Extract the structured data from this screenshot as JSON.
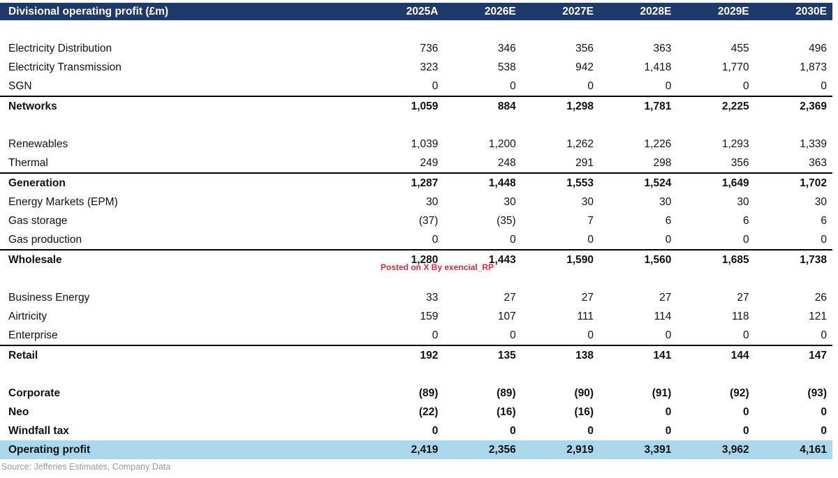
{
  "table": {
    "title": "Divisional operating profit (£m)",
    "columns": [
      "2025A",
      "2026E",
      "2027E",
      "2028E",
      "2029E",
      "2030E"
    ],
    "rows": [
      {
        "type": "spacer",
        "label": "",
        "values": [
          "",
          "",
          "",
          "",
          "",
          ""
        ]
      },
      {
        "type": "data",
        "label": "Electricity Distribution",
        "values": [
          "736",
          "346",
          "356",
          "363",
          "455",
          "496"
        ]
      },
      {
        "type": "data",
        "label": "Electricity Transmission",
        "values": [
          "323",
          "538",
          "942",
          "1,418",
          "1,770",
          "1,873"
        ]
      },
      {
        "type": "data",
        "label": "SGN",
        "values": [
          "0",
          "0",
          "0",
          "0",
          "0",
          "0"
        ]
      },
      {
        "type": "total",
        "label": "Networks",
        "values": [
          "1,059",
          "884",
          "1,298",
          "1,781",
          "2,225",
          "2,369"
        ]
      },
      {
        "type": "spacer",
        "label": "",
        "values": [
          "",
          "",
          "",
          "",
          "",
          ""
        ]
      },
      {
        "type": "data",
        "label": "Renewables",
        "values": [
          "1,039",
          "1,200",
          "1,262",
          "1,226",
          "1,293",
          "1,339"
        ]
      },
      {
        "type": "data",
        "label": "Thermal",
        "values": [
          "249",
          "248",
          "291",
          "298",
          "356",
          "363"
        ]
      },
      {
        "type": "total",
        "label": "Generation",
        "values": [
          "1,287",
          "1,448",
          "1,553",
          "1,524",
          "1,649",
          "1,702"
        ]
      },
      {
        "type": "data",
        "label": "Energy Markets (EPM)",
        "values": [
          "30",
          "30",
          "30",
          "30",
          "30",
          "30"
        ]
      },
      {
        "type": "data",
        "label": "Gas storage",
        "values": [
          "(37)",
          "(35)",
          "7",
          "6",
          "6",
          "6"
        ]
      },
      {
        "type": "data",
        "label": "Gas production",
        "values": [
          "0",
          "0",
          "0",
          "0",
          "0",
          "0"
        ]
      },
      {
        "type": "total",
        "label": "Wholesale",
        "values": [
          "1,280",
          "1,443",
          "1,590",
          "1,560",
          "1,685",
          "1,738"
        ]
      },
      {
        "type": "spacer",
        "label": "",
        "values": [
          "",
          "",
          "",
          "",
          "",
          ""
        ]
      },
      {
        "type": "data",
        "label": "Business Energy",
        "values": [
          "33",
          "27",
          "27",
          "27",
          "27",
          "26"
        ]
      },
      {
        "type": "data",
        "label": "Airtricity",
        "values": [
          "159",
          "107",
          "111",
          "114",
          "118",
          "121"
        ]
      },
      {
        "type": "data",
        "label": "Enterprise",
        "values": [
          "0",
          "0",
          "0",
          "0",
          "0",
          "0"
        ]
      },
      {
        "type": "total",
        "label": "Retail",
        "values": [
          "192",
          "135",
          "138",
          "141",
          "144",
          "147"
        ]
      },
      {
        "type": "spacer",
        "label": "",
        "values": [
          "",
          "",
          "",
          "",
          "",
          ""
        ]
      },
      {
        "type": "bold",
        "label": "Corporate",
        "values": [
          "(89)",
          "(89)",
          "(90)",
          "(91)",
          "(92)",
          "(93)"
        ]
      },
      {
        "type": "bold",
        "label": "Neo",
        "values": [
          "(22)",
          "(16)",
          "(16)",
          "0",
          "0",
          "0"
        ]
      },
      {
        "type": "bold",
        "label": "Windfall tax",
        "values": [
          "0",
          "0",
          "0",
          "0",
          "0",
          "0"
        ]
      },
      {
        "type": "grand",
        "label": "Operating profit",
        "values": [
          "2,419",
          "2,356",
          "2,919",
          "3,391",
          "3,962",
          "4,161"
        ]
      }
    ]
  },
  "watermark": "Posted on X By exencial_RP",
  "source": "Source: Jefferies Estimates, Company Data",
  "colors": {
    "header_bg": "#1e3a6a",
    "highlight_bg": "#a9d8ec",
    "watermark": "#e0263c",
    "source_text": "#9b9b9b",
    "rule_line": "#000000"
  }
}
